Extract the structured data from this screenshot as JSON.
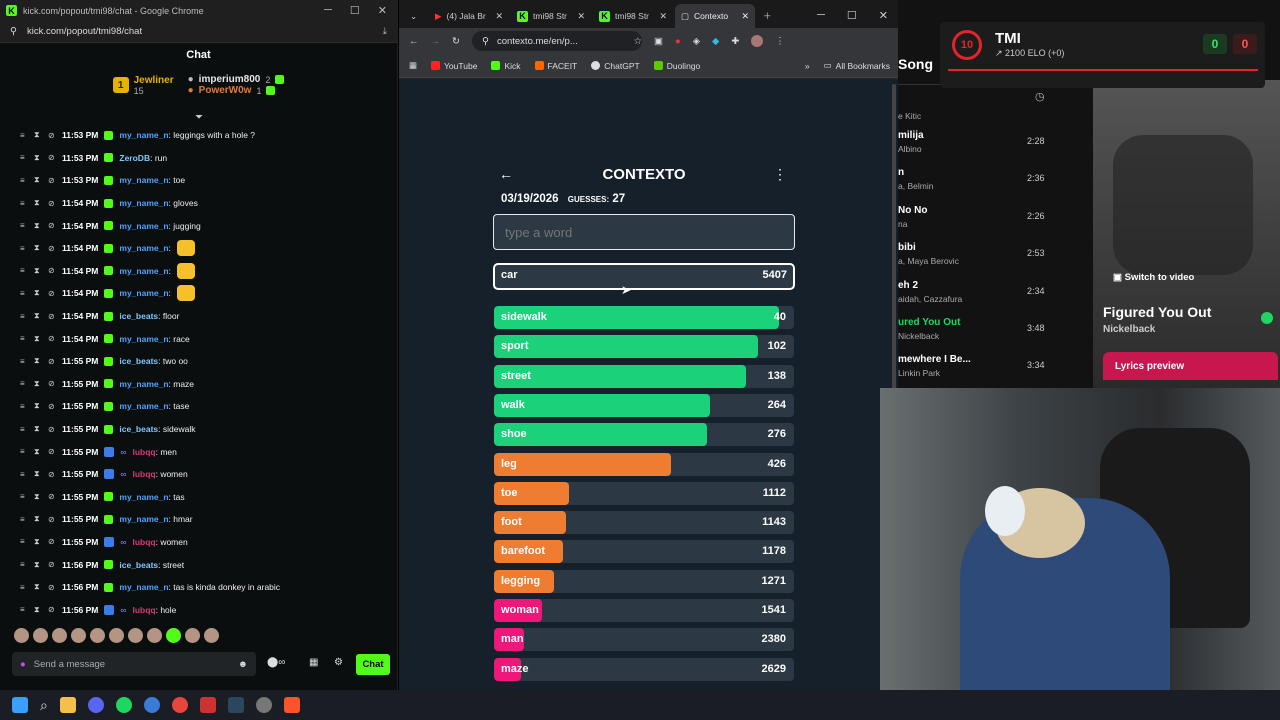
{
  "kick": {
    "window_title": "kick.com/popout/tmi98/chat - Google Chrome",
    "url": "kick.com/popout/tmi98/chat",
    "chat_header": "Chat",
    "gifters": [
      {
        "rank": "1",
        "name": "Jewliner",
        "count": "15"
      },
      {
        "name": "imperium800",
        "count": "2"
      },
      {
        "name": "PowerW0w",
        "count": "1"
      }
    ],
    "messages": [
      {
        "time": "11:53 PM",
        "user": "my_name_n",
        "text": ": leggings with a hole ?",
        "color": "#4fa3ff"
      },
      {
        "time": "11:53 PM",
        "user": "ZeroDB",
        "text": ": run",
        "color": "#7ec8ff"
      },
      {
        "time": "11:53 PM",
        "user": "my_name_n",
        "text": ": toe",
        "color": "#4fa3ff"
      },
      {
        "time": "11:54 PM",
        "user": "my_name_n",
        "text": ": gloves",
        "color": "#4fa3ff"
      },
      {
        "time": "11:54 PM",
        "user": "my_name_n",
        "text": ": jugging",
        "color": "#4fa3ff"
      },
      {
        "time": "11:54 PM",
        "user": "my_name_n",
        "text": ":",
        "color": "#4fa3ff",
        "emote": true
      },
      {
        "time": "11:54 PM",
        "user": "my_name_n",
        "text": ":",
        "color": "#4fa3ff",
        "emote": true
      },
      {
        "time": "11:54 PM",
        "user": "my_name_n",
        "text": ":",
        "color": "#4fa3ff",
        "emote": true
      },
      {
        "time": "11:54 PM",
        "user": "ice_beats",
        "text": ": floor",
        "color": "#7ec8ff"
      },
      {
        "time": "11:54 PM",
        "user": "my_name_n",
        "text": ": race",
        "color": "#4fa3ff"
      },
      {
        "time": "11:55 PM",
        "user": "ice_beats",
        "text": ": two oo",
        "color": "#7ec8ff"
      },
      {
        "time": "11:55 PM",
        "user": "my_name_n",
        "text": ": maze",
        "color": "#4fa3ff"
      },
      {
        "time": "11:55 PM",
        "user": "my_name_n",
        "text": ": tase",
        "color": "#4fa3ff"
      },
      {
        "time": "11:55 PM",
        "user": "ice_beats",
        "text": ": sidewalk",
        "color": "#7ec8ff"
      },
      {
        "time": "11:55 PM",
        "user": "lubqq",
        "text": ": men",
        "color": "#d63a78"
      },
      {
        "time": "11:55 PM",
        "user": "lubqq",
        "text": ": women",
        "color": "#d63a78"
      },
      {
        "time": "11:55 PM",
        "user": "my_name_n",
        "text": ": tas",
        "color": "#4fa3ff"
      },
      {
        "time": "11:55 PM",
        "user": "my_name_n",
        "text": ": hmar",
        "color": "#4fa3ff"
      },
      {
        "time": "11:55 PM",
        "user": "lubqq",
        "text": ": women",
        "color": "#d63a78"
      },
      {
        "time": "11:56 PM",
        "user": "ice_beats",
        "text": ": street",
        "color": "#7ec8ff"
      },
      {
        "time": "11:56 PM",
        "user": "my_name_n",
        "text": ": tas is kinda donkey in arabic",
        "color": "#4fa3ff"
      },
      {
        "time": "11:56 PM",
        "user": "lubqq",
        "text": ": hole",
        "color": "#d63a78"
      }
    ],
    "send_placeholder": "Send a message",
    "chat_button": "Chat"
  },
  "chrome": {
    "tabs": [
      {
        "label": "(4) Jala Br"
      },
      {
        "label": "tmi98 Str"
      },
      {
        "label": "tmi98 Str"
      },
      {
        "label": "Contexto",
        "active": true
      }
    ],
    "url": "contexto.me/en/p...",
    "bookmarks": [
      "YouTube",
      "Kick",
      "FACEIT",
      "ChatGPT",
      "Duolingo"
    ],
    "all_bookmarks": "All Bookmarks"
  },
  "contexto": {
    "title": "CONTEXTO",
    "date": "03/19/2026",
    "guesses_label": "GUESSES:",
    "guesses": "27",
    "placeholder": "type a word",
    "last_guess": {
      "word": "car",
      "rank": "5407"
    },
    "guesses_list": [
      {
        "word": "sidewalk",
        "rank": "40",
        "fill": 0.95,
        "color": "#1bd27a"
      },
      {
        "word": "sport",
        "rank": "102",
        "fill": 0.88,
        "color": "#1bd27a"
      },
      {
        "word": "street",
        "rank": "138",
        "fill": 0.84,
        "color": "#1bd27a"
      },
      {
        "word": "walk",
        "rank": "264",
        "fill": 0.72,
        "color": "#1bd27a"
      },
      {
        "word": "shoe",
        "rank": "276",
        "fill": 0.71,
        "color": "#1bd27a"
      },
      {
        "word": "leg",
        "rank": "426",
        "fill": 0.59,
        "color": "#ef7d31"
      },
      {
        "word": "toe",
        "rank": "1112",
        "fill": 0.25,
        "color": "#ef7d31"
      },
      {
        "word": "foot",
        "rank": "1143",
        "fill": 0.24,
        "color": "#ef7d31"
      },
      {
        "word": "barefoot",
        "rank": "1178",
        "fill": 0.23,
        "color": "#ef7d31"
      },
      {
        "word": "legging",
        "rank": "1271",
        "fill": 0.2,
        "color": "#ef7d31"
      },
      {
        "word": "woman",
        "rank": "1541",
        "fill": 0.16,
        "color": "#f0177a"
      },
      {
        "word": "man",
        "rank": "2380",
        "fill": 0.1,
        "color": "#f0177a"
      },
      {
        "word": "maze",
        "rank": "2629",
        "fill": 0.09,
        "color": "#f0177a"
      }
    ]
  },
  "faceit": {
    "level": "10",
    "name": "TMI",
    "elo": "2100 ELO (+0)",
    "score_a": "0",
    "score_b": "0"
  },
  "spotify": {
    "header": "Song",
    "songs": [
      {
        "title": "",
        "artist": "e Kitic",
        "duration": ""
      },
      {
        "title": "milija",
        "artist": "Albino",
        "duration": "2:28"
      },
      {
        "title": "n",
        "artist": "a, Belmin",
        "duration": "2:36"
      },
      {
        "title": "No No",
        "artist": "na",
        "duration": "2:26"
      },
      {
        "title": "bibi",
        "artist": "a, Maya Berovic",
        "duration": "2:53"
      },
      {
        "title": "eh 2",
        "artist": "aidah, Cazzafura",
        "duration": "2:34"
      },
      {
        "title": "ured You Out",
        "artist": "Nickelback",
        "duration": "3:48"
      },
      {
        "title": "mewhere I Be...",
        "artist": "Linkin Park",
        "duration": "3:34"
      }
    ],
    "switch_video": "Switch to video",
    "now_title": "Figured You Out",
    "now_artist": "Nickelback",
    "lyrics": "Lyrics preview"
  }
}
